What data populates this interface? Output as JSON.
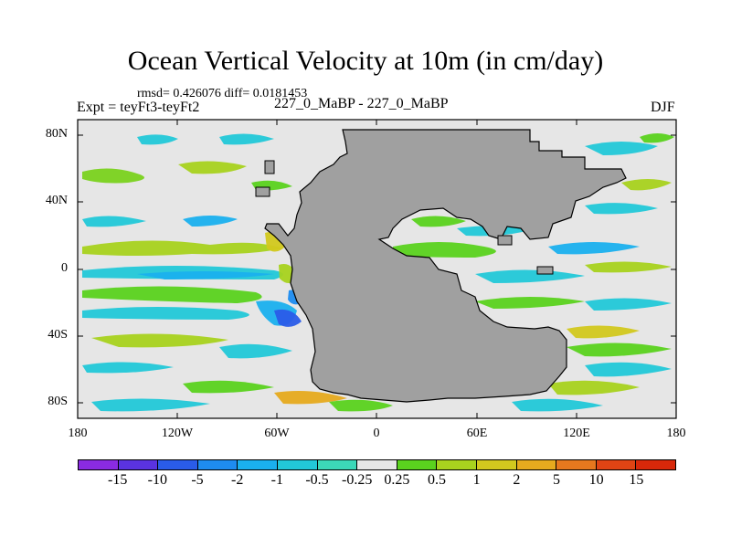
{
  "title": "Ocean Vertical Velocity at 10m (in cm/day)",
  "stats": "rmsd= 0.426076 diff= 0.0181453",
  "experiment": "Expt = teyFt3-teyFt2",
  "period": "227_0_MaBP - 227_0_MaBP",
  "season": "DJF",
  "lat_labels": [
    "80N",
    "40N",
    "0",
    "40S",
    "80S"
  ],
  "lon_labels": [
    "180",
    "120W",
    "60W",
    "0",
    "60E",
    "120E",
    "180"
  ],
  "colorbar": {
    "labels": [
      "-15",
      "-10",
      "-5",
      "-2",
      "-1",
      "-0.5",
      "-0.25",
      "0.25",
      "0.5",
      "1",
      "2",
      "5",
      "10",
      "15"
    ],
    "colors": [
      "#8a2be2",
      "#5a33e0",
      "#2a5ce8",
      "#1e8cf0",
      "#1ab0ee",
      "#22c8d8",
      "#3cd8b8",
      "#e6e6e6",
      "#5ad21e",
      "#a8d21e",
      "#d2c81e",
      "#e6aa1e",
      "#e6781e",
      "#e04414",
      "#d8280a"
    ]
  },
  "map_colors": {
    "land": "#a0a0a0",
    "ocean": "#e6e6e6"
  }
}
